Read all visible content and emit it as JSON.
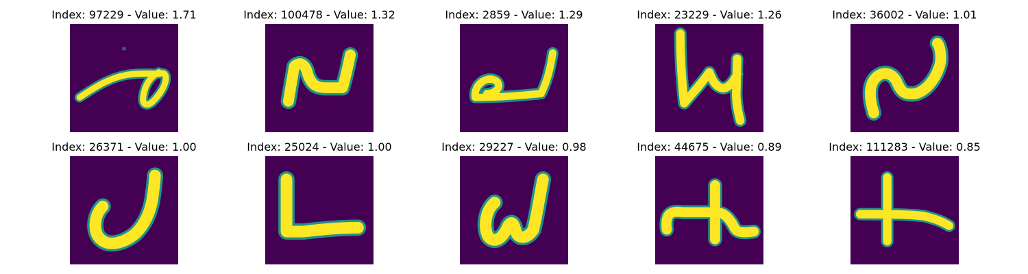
{
  "figure": {
    "colors": {
      "background": "#440154",
      "stroke_core": "#fde725",
      "stroke_mid": "#5ec962",
      "stroke_edge": "#21918c"
    },
    "panels": [
      {
        "title": "Index: 97229 - Value: 1.71",
        "index": 97229,
        "value": 1.71
      },
      {
        "title": "Index: 100478 - Value: 1.32",
        "index": 100478,
        "value": 1.32
      },
      {
        "title": "Index: 2859 - Value: 1.29",
        "index": 2859,
        "value": 1.29
      },
      {
        "title": "Index: 23229 - Value: 1.26",
        "index": 23229,
        "value": 1.26
      },
      {
        "title": "Index: 36002 - Value: 1.01",
        "index": 36002,
        "value": 1.01
      },
      {
        "title": "Index: 26371 - Value: 1.00",
        "index": 26371,
        "value": 1.0
      },
      {
        "title": "Index: 25024 - Value: 1.00",
        "index": 25024,
        "value": 1.0
      },
      {
        "title": "Index: 29227 - Value: 0.98",
        "index": 29227,
        "value": 0.98
      },
      {
        "title": "Index: 44675 - Value: 0.89",
        "index": 44675,
        "value": 0.89
      },
      {
        "title": "Index: 111283 - Value: 0.85",
        "index": 111283,
        "value": 0.85
      }
    ]
  }
}
